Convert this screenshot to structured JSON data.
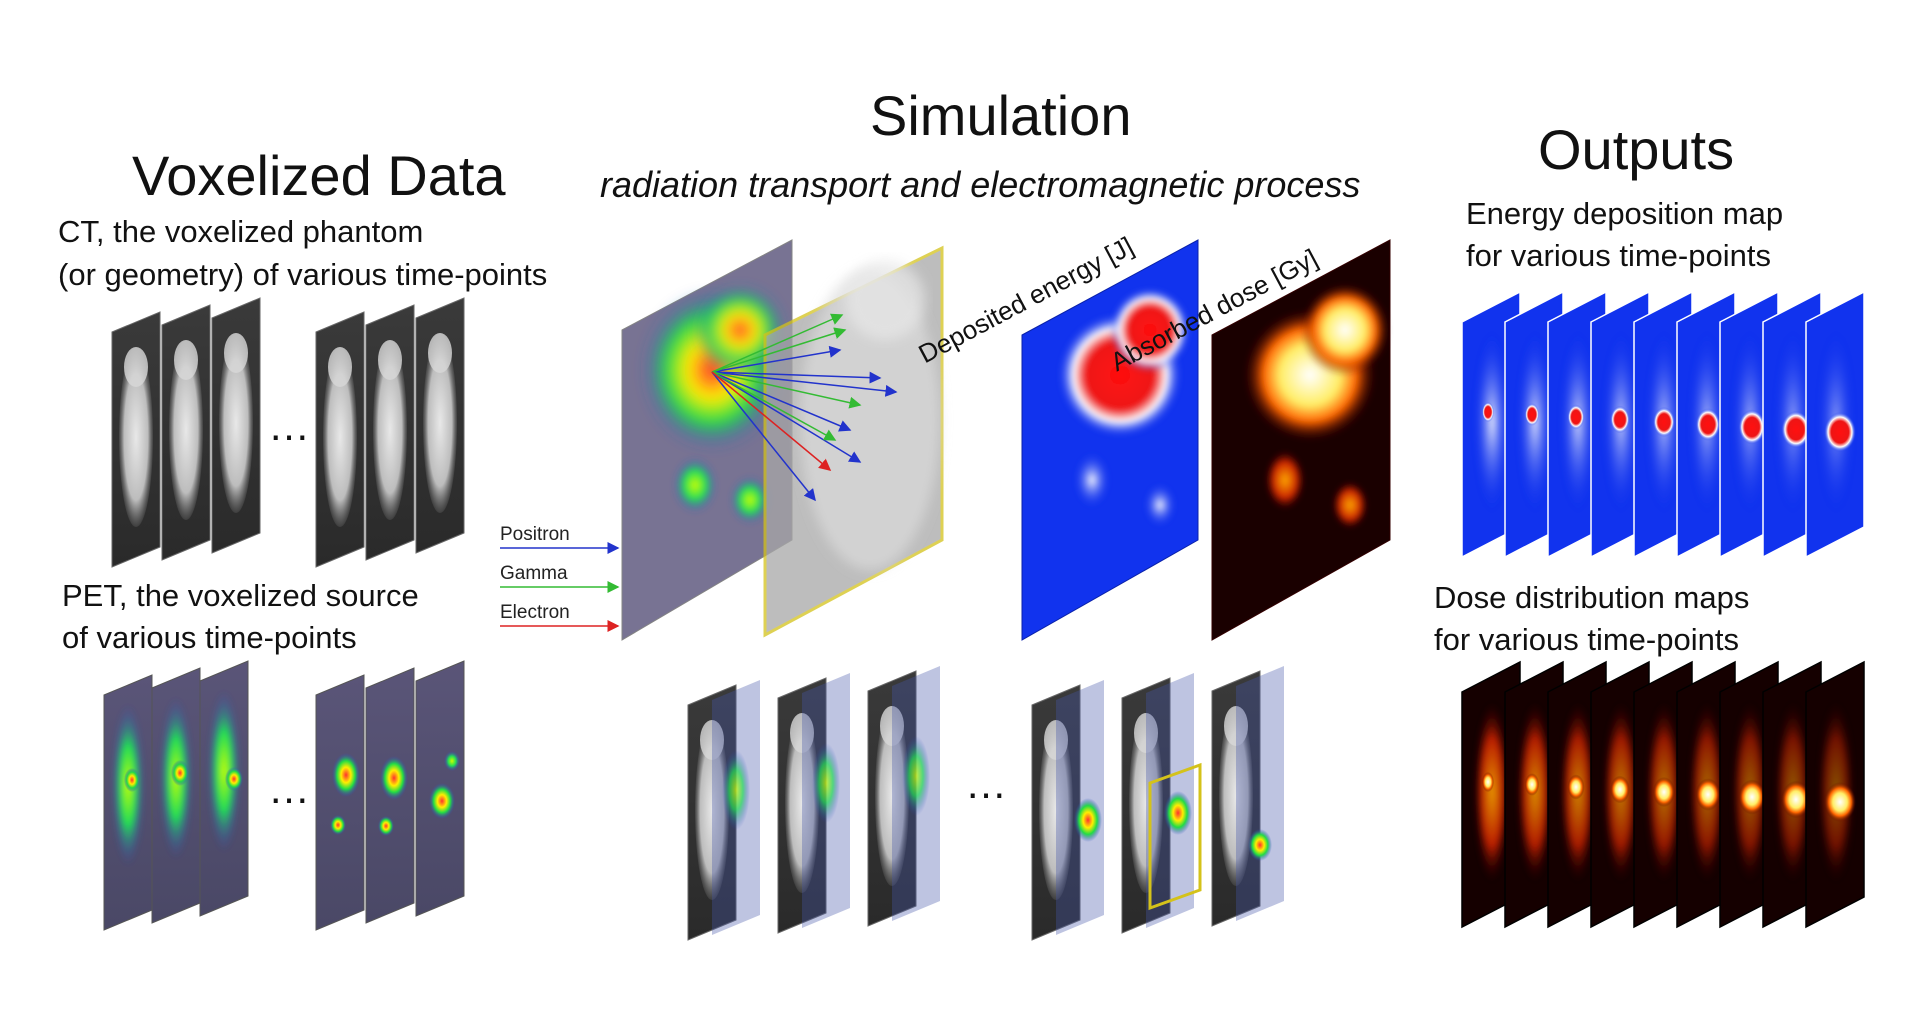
{
  "voxelized": {
    "title": "Voxelized Data",
    "ct_label_1": "CT, the voxelized phantom",
    "ct_label_2": "(or geometry) of various time-points",
    "pet_label_1": "PET, the voxelized source",
    "pet_label_2": "of various time-points"
  },
  "simulation": {
    "title": "Simulation",
    "subtitle": "radiation transport and electromagnetic process",
    "energy_axis_label": "Deposited energy [J]",
    "dose_axis_label": "Absorbed dose [Gy]",
    "legend": [
      {
        "label": "Positron",
        "color": "#2233cc"
      },
      {
        "label": "Gamma",
        "color": "#33bb33"
      },
      {
        "label": "Electron",
        "color": "#dd2222"
      }
    ]
  },
  "outputs": {
    "title": "Outputs",
    "energy_label_1": "Energy deposition map",
    "energy_label_2": "for various time-points",
    "dose_label_1": "Dose distribution maps",
    "dose_label_2": "for various time-points"
  },
  "ellipsis": "…",
  "colors": {
    "ct": "#9a9a9a",
    "energy_map": "#1133ee",
    "dose_map": "#1a0000",
    "highlight_frame": "#d4c21a"
  }
}
